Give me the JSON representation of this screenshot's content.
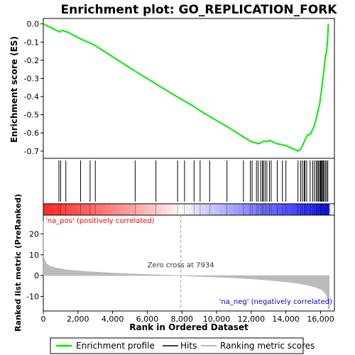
{
  "chart_data": {
    "type": "line",
    "title": "Enrichment plot: GO_REPLICATION_FORK",
    "xlabel": "Rank in Ordered Dataset",
    "ylabel_top": "Enrichment score (ES)",
    "ylabel_bottom": "Ranked list metric (PreRanked)",
    "xlim": [
      0,
      16800
    ],
    "ylim_top": [
      -0.74,
      0.03
    ],
    "ylim_bottom": [
      -17,
      29
    ],
    "x_ticks": [
      0,
      2000,
      4000,
      6000,
      8000,
      10000,
      12000,
      14000,
      16000
    ],
    "x_tick_labels": [
      "0",
      "2,000",
      "4,000",
      "6,000",
      "8,000",
      "10,000",
      "12,000",
      "14,000",
      "16,000"
    ],
    "y_ticks_top": [
      0.0,
      -0.1,
      -0.2,
      -0.3,
      -0.4,
      -0.5,
      -0.6,
      -0.7
    ],
    "y_tick_labels_top": [
      "0.0",
      "-0.1",
      "-0.2",
      "-0.3",
      "-0.4",
      "-0.5",
      "-0.6",
      "-0.7"
    ],
    "y_ticks_bottom": [
      20,
      10,
      0,
      -10
    ],
    "y_tick_labels_bottom": [
      "20",
      "10",
      "0",
      "-10"
    ],
    "series": [
      {
        "name": "Enrichment profile",
        "color": "#00ee00",
        "x": [
          0,
          950,
          1050,
          1400,
          2200,
          2800,
          3000,
          5300,
          6500,
          7700,
          8150,
          8700,
          9000,
          9600,
          10600,
          11600,
          11950,
          12050,
          12300,
          12400,
          12550,
          12650,
          12700,
          12800,
          12900,
          13000,
          13100,
          13200,
          13500,
          13800,
          14000,
          14700,
          14850,
          14950,
          15050,
          15150,
          15250,
          15400,
          15500,
          15600,
          15700,
          15800,
          15850,
          15900,
          15950,
          16000,
          16050,
          16100,
          16150,
          16200,
          16250,
          16350,
          16400,
          16450
        ],
        "y": [
          0.0,
          -0.045,
          -0.035,
          -0.045,
          -0.085,
          -0.11,
          -0.12,
          -0.26,
          -0.33,
          -0.4,
          -0.425,
          -0.455,
          -0.475,
          -0.51,
          -0.565,
          -0.625,
          -0.645,
          -0.65,
          -0.655,
          -0.66,
          -0.655,
          -0.65,
          -0.645,
          -0.645,
          -0.648,
          -0.645,
          -0.64,
          -0.648,
          -0.66,
          -0.665,
          -0.67,
          -0.7,
          -0.69,
          -0.67,
          -0.65,
          -0.63,
          -0.61,
          -0.61,
          -0.59,
          -0.57,
          -0.54,
          -0.5,
          -0.48,
          -0.46,
          -0.44,
          -0.4,
          -0.37,
          -0.33,
          -0.29,
          -0.25,
          -0.2,
          -0.15,
          -0.1,
          0.0
        ]
      }
    ],
    "hits": [
      900,
      1000,
      1300,
      2150,
      2700,
      3000,
      5300,
      6500,
      7750,
      8150,
      8700,
      9050,
      9600,
      10600,
      11550,
      11950,
      12050,
      12300,
      12400,
      12550,
      12650,
      12700,
      12800,
      12900,
      13050,
      13150,
      13500,
      13800,
      14000,
      14700,
      14850,
      14950,
      15050,
      15100,
      15200,
      15400,
      15550,
      15650,
      15750,
      15820,
      15880,
      15950,
      16000,
      16050,
      16100,
      16150,
      16200,
      16280,
      16350,
      16420
    ],
    "ranked_metric": {
      "x": [
        0,
        30,
        100,
        200,
        400,
        800,
        1500,
        2500,
        4000,
        6000,
        7934,
        9000,
        11000,
        12000,
        13000,
        14000,
        14600,
        15200,
        15700,
        16000,
        16200,
        16350,
        16420,
        16450,
        16500
      ],
      "y": [
        26,
        9,
        7,
        5.5,
        4.5,
        3.5,
        2.6,
        1.9,
        1.2,
        0.5,
        0,
        -0.4,
        -1.1,
        -1.6,
        -2.2,
        -3.0,
        -3.6,
        -4.5,
        -5.5,
        -6.5,
        -7.8,
        -9.5,
        -12,
        -16,
        -16
      ]
    },
    "annotations": {
      "zero_cross": "Zero cross at 7934",
      "zero_cross_x": 7934,
      "pos_label": "'na_pos' (positively correlated)",
      "neg_label": "'na_neg' (negatively correlated)"
    },
    "colors": {
      "pos_label": "#ff0000",
      "neg_label": "#0000cc",
      "metric_fill": "#bbbbbb",
      "profile": "#00ee00"
    },
    "grid": false,
    "legend": "bottom",
    "legend_entries": [
      {
        "label": "Enrichment profile",
        "color": "#00ee00"
      },
      {
        "label": "Hits",
        "color": "#000000"
      },
      {
        "label": "Ranking metric scores",
        "color": "#bbbbbb"
      }
    ]
  }
}
